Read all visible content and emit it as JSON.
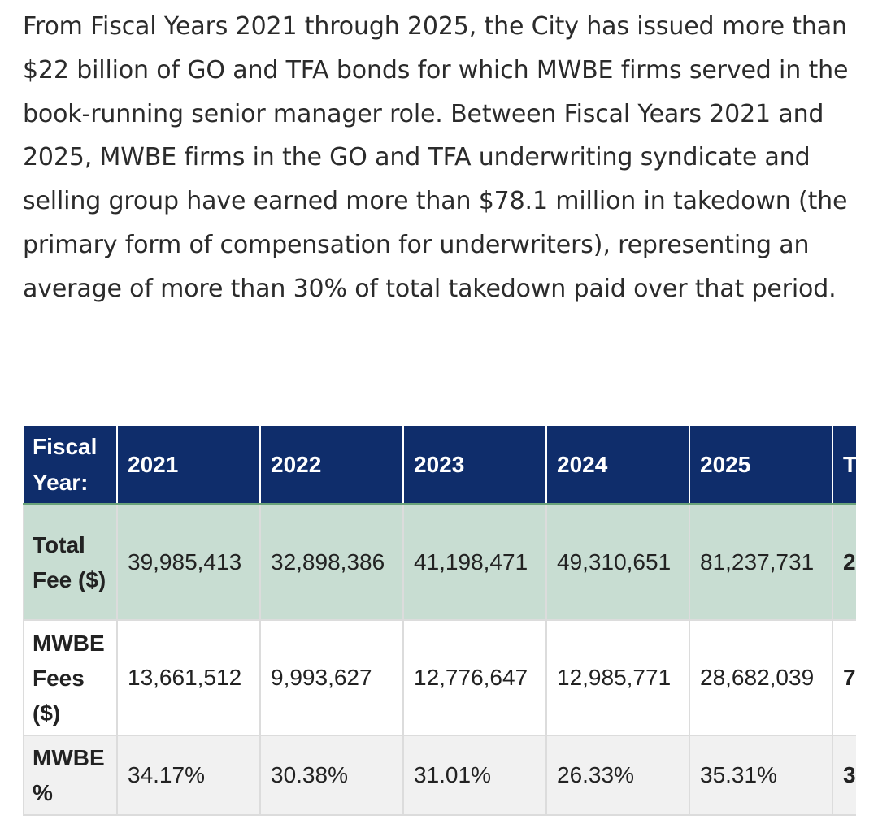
{
  "intro": {
    "paragraph": "From Fiscal Years 2021 through 2025, the City has issued more than $22 billion of GO and TFA bonds for which MWBE firms served in the book-running senior manager role. Between Fiscal Years 2021 and 2025, MWBE firms in the GO and TFA underwriting syndicate and selling group have earned more than $78.1 million in takedown (the primary form of compensation for underwriters), representing an average of more than 30% of total takedown paid over that period."
  },
  "table": {
    "header": {
      "label": "Fiscal Year:",
      "years": [
        "2021",
        "2022",
        "2023",
        "2024",
        "2025"
      ],
      "total_label": "T"
    },
    "rows": [
      {
        "label": "Total Fee ($)",
        "values": [
          "39,985,413",
          "32,898,386",
          "41,198,471",
          "49,310,651",
          "81,237,731"
        ],
        "total": "2"
      },
      {
        "label": "MWBE Fees ($)",
        "values": [
          "13,661,512",
          "9,993,627",
          "12,776,647",
          "12,985,771",
          "28,682,039"
        ],
        "total": "7"
      },
      {
        "label": "MWBE %",
        "values": [
          "34.17%",
          "30.38%",
          "31.01%",
          "26.33%",
          "35.31%"
        ],
        "total": "3"
      }
    ]
  }
}
